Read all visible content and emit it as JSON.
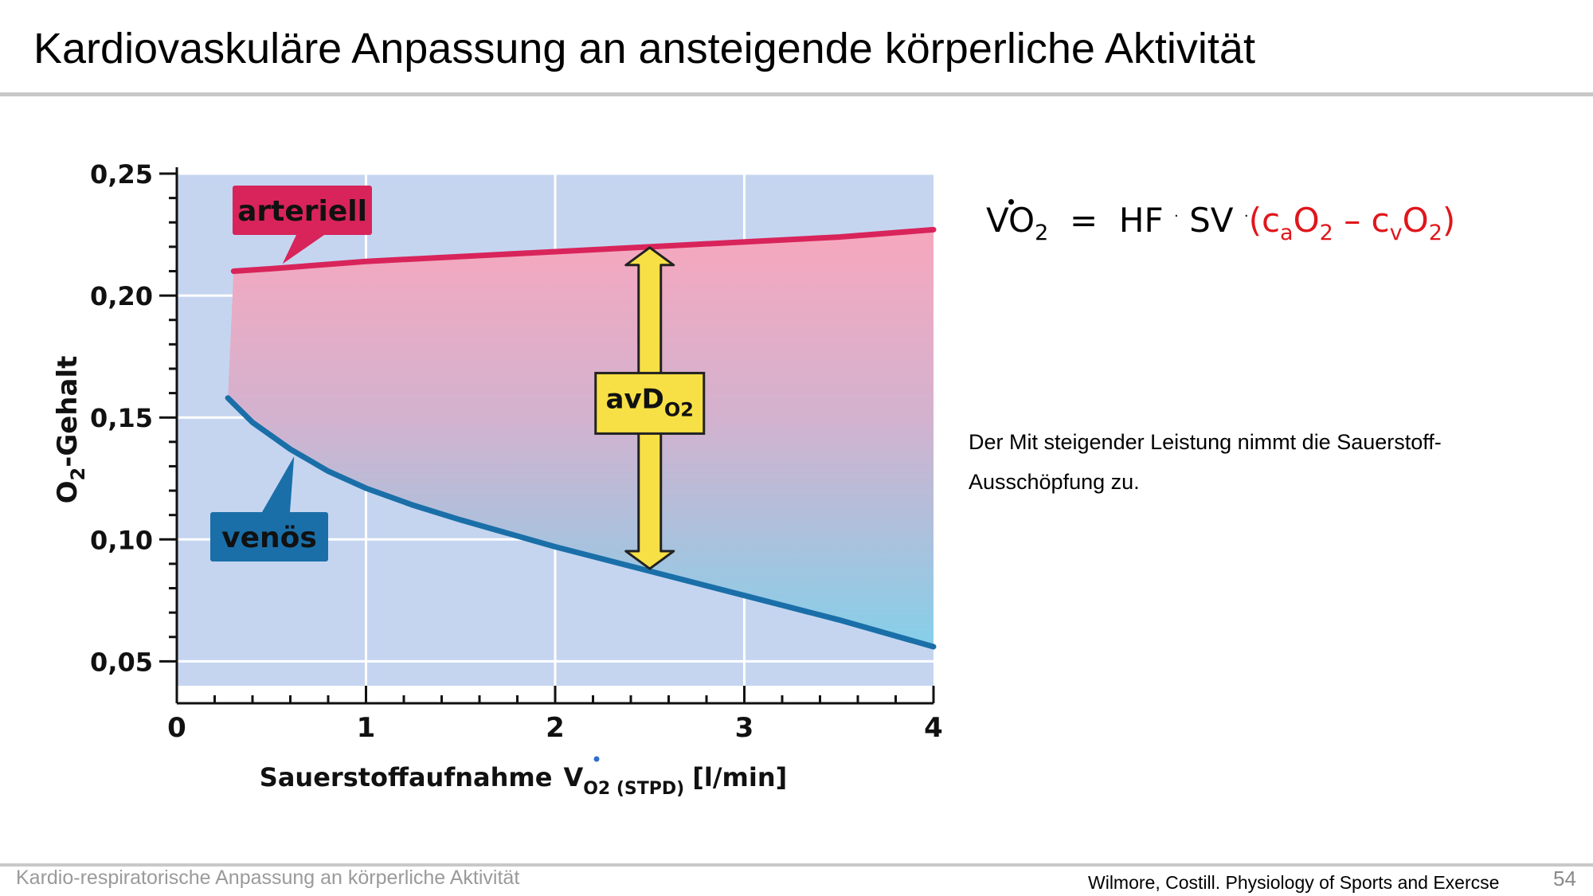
{
  "slide": {
    "title": "Kardiovaskuläre Anpassung an ansteigende körperliche Aktivität",
    "footer_left": "Kardio-respiratorische Anpassung an körperliche Aktivität",
    "citation": "Wilmore, Costill. Physiology of Sports and Exercse",
    "page_number": "54"
  },
  "formula": {
    "lhs_symbol": "VO",
    "lhs_sub": "2",
    "equals": "=",
    "hf": "HF",
    "dot1": "·",
    "sv": "SV",
    "dot2": "·",
    "open_paren": "(c",
    "ca_sub": "a",
    "o_1": "O",
    "o_1_sub": "2",
    "minus": " – c",
    "cv_sub": "v",
    "o_2": "O",
    "o_2_sub": "2",
    "close_paren": ")",
    "highlight_color": "#e0161b"
  },
  "explanation": "Der Mit steigender Leistung nimmt die Sauerstoff-Ausschöpfung zu.",
  "chart_data": {
    "type": "area",
    "x_label_main": "Sauerstoffaufnahme",
    "x_label_symbol": "V",
    "x_label_sub": "O2 (STPD)",
    "x_label_unit": "[l/min]",
    "y_label_main": "O",
    "y_label_sub": "2",
    "y_label_rest": "-Gehalt",
    "xlim": [
      0,
      4
    ],
    "ylim": [
      0.04,
      0.25
    ],
    "x_ticks": [
      "0",
      "1",
      "2",
      "3",
      "4"
    ],
    "y_ticks": [
      "0,25",
      "0,20",
      "0,15",
      "0,10",
      "0,05"
    ],
    "y_tick_values": [
      0.25,
      0.2,
      0.15,
      0.1,
      0.05
    ],
    "grid": true,
    "series": [
      {
        "name": "arteriell",
        "color": "#d8245a",
        "x": [
          0.3,
          0.5,
          1.0,
          1.5,
          2.0,
          2.5,
          3.0,
          3.5,
          4.0
        ],
        "y": [
          0.21,
          0.211,
          0.214,
          0.216,
          0.218,
          0.22,
          0.222,
          0.224,
          0.227
        ]
      },
      {
        "name": "venös",
        "color": "#1a6fa8",
        "x": [
          0.27,
          0.4,
          0.6,
          0.8,
          1.0,
          1.25,
          1.5,
          2.0,
          2.5,
          3.0,
          3.5,
          4.0
        ],
        "y": [
          0.158,
          0.148,
          0.137,
          0.128,
          0.121,
          0.114,
          0.108,
          0.097,
          0.087,
          0.077,
          0.067,
          0.056
        ]
      }
    ],
    "annotation": {
      "main": "avD",
      "sub": "O2",
      "x": 2.5,
      "y_top": 0.2197,
      "y_bottom": 0.088,
      "color": "#f7e045"
    }
  }
}
